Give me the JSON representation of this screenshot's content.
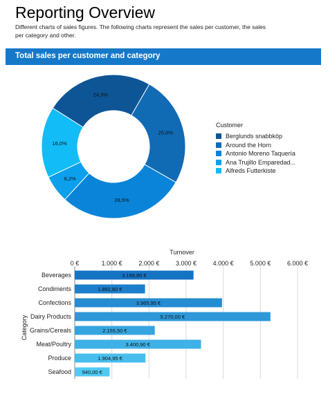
{
  "page": {
    "title": "Reporting Overview",
    "description": "Different charts of sales figures. The following charts represent the sales per customer, the sales per category and other."
  },
  "section": {
    "title": "Total sales per customer and category"
  },
  "colors": {
    "section_bar": "#1678c8",
    "bar_dark": "#1573c4",
    "bar_light": "#4fcaf3"
  },
  "chart_data": [
    {
      "type": "pie",
      "variant": "donut",
      "legend_title": "Customer",
      "legend_position": "right",
      "slices": [
        {
          "label": "Berglunds snabbköp",
          "value": 24.3,
          "display": "24,3%",
          "color": "#0e5596"
        },
        {
          "label": "Around the Horn",
          "value": 25.0,
          "display": "25,0%",
          "color": "#116ab4"
        },
        {
          "label": "Antonio Moreno Taquería",
          "value": 28.5,
          "display": "28,5%",
          "color": "#0a84d8"
        },
        {
          "label": "Ana Trujillo Emparedad...",
          "value": 6.2,
          "display": "6,2%",
          "color": "#0ca0ec"
        },
        {
          "label": "Alfreds Futterkiste",
          "value": 16.0,
          "display": "16,0%",
          "color": "#12bcf6"
        }
      ]
    },
    {
      "type": "bar",
      "orientation": "horizontal",
      "xlabel": "Turnover",
      "ylabel": "Category",
      "xlim": [
        0,
        6000
      ],
      "xticks": [
        "0 €",
        "1.000 €",
        "2.000 €",
        "3.000 €",
        "4.000 €",
        "5.000 €",
        "6.000 €"
      ],
      "grid": true,
      "categories": [
        "Beverages",
        "Condiments",
        "Confections",
        "Dairy Products",
        "Grains/Cereals",
        "Meat/Poultry",
        "Produce",
        "Seafood"
      ],
      "values": [
        3198.8,
        1892.8,
        3965.95,
        5270.0,
        2155.5,
        3400.9,
        1904.95,
        940.0
      ],
      "labels": [
        "3.198,80 €",
        "1.892,80 €",
        "3.965,95 €",
        "5.270,00 €",
        "2.155,50 €",
        "3.400,90 €",
        "1.904,95 €",
        "940,00 €"
      ]
    }
  ]
}
